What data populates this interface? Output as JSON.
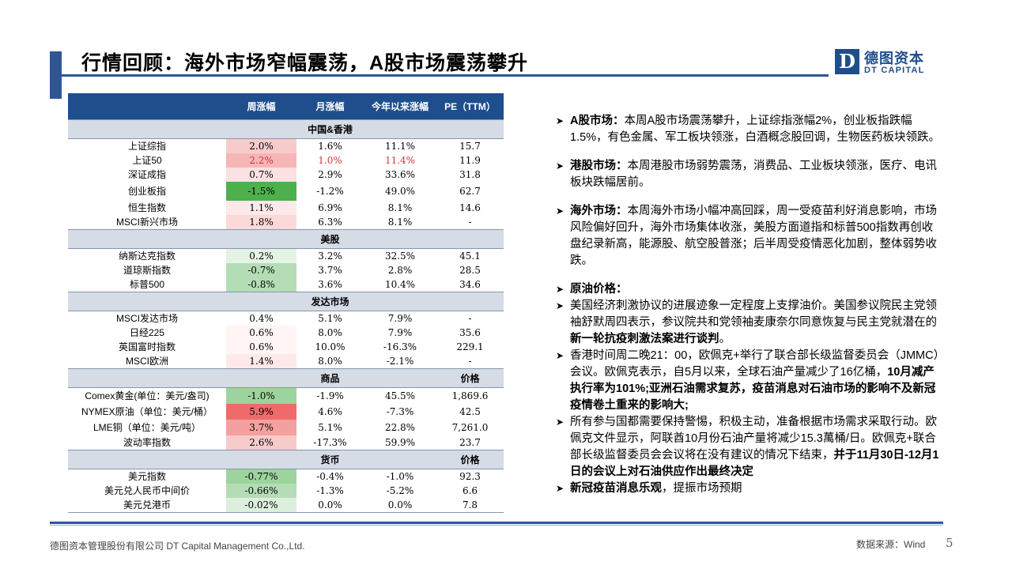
{
  "header": {
    "title": "行情回顾：海外市场窄幅震荡，A股市场震荡攀升",
    "logo_mark": "D",
    "logo_cn": "德图资本",
    "logo_en": "DT CAPITAL"
  },
  "table": {
    "columns": [
      "",
      "周涨幅",
      "月涨幅",
      "今年以来涨幅",
      "PE（TTM）"
    ],
    "sections": [
      {
        "title": "中国&香港",
        "extra": "",
        "rows": [
          {
            "name": "上证综指",
            "week": "2.0%",
            "month": "1.6%",
            "ytd": "11.1%",
            "pe": "15.7"
          },
          {
            "name": "上证50",
            "week": "2.2%",
            "month": "1.0%",
            "ytd": "11.4%",
            "pe": "11.9"
          },
          {
            "name": "深证成指",
            "week": "0.7%",
            "month": "2.9%",
            "ytd": "33.6%",
            "pe": "31.8"
          },
          {
            "name": "创业板指",
            "week": "-1.5%",
            "month": "-1.2%",
            "ytd": "49.0%",
            "pe": "62.7"
          },
          {
            "name": "恒生指数",
            "week": "1.1%",
            "month": "6.9%",
            "ytd": "8.1%",
            "pe": "14.6"
          },
          {
            "name": "MSCI新兴市场",
            "week": "1.8%",
            "month": "6.3%",
            "ytd": "8.1%",
            "pe": "-"
          }
        ]
      },
      {
        "title": "美股",
        "extra": "",
        "rows": [
          {
            "name": "纳斯达克指数",
            "week": "0.2%",
            "month": "3.2%",
            "ytd": "32.5%",
            "pe": "45.1"
          },
          {
            "name": "道琼斯指数",
            "week": "-0.7%",
            "month": "3.7%",
            "ytd": "2.8%",
            "pe": "28.5"
          },
          {
            "name": "标普500",
            "week": "-0.8%",
            "month": "3.6%",
            "ytd": "10.4%",
            "pe": "34.6"
          }
        ]
      },
      {
        "title": "发达市场",
        "extra": "",
        "rows": [
          {
            "name": "MSCI发达市场",
            "week": "0.4%",
            "month": "5.1%",
            "ytd": "7.9%",
            "pe": "-"
          },
          {
            "name": "日经225",
            "week": "0.6%",
            "month": "8.0%",
            "ytd": "7.9%",
            "pe": "35.6"
          },
          {
            "name": "英国富时指数",
            "week": "0.6%",
            "month": "10.0%",
            "ytd": "-16.3%",
            "pe": "229.1"
          },
          {
            "name": "MSCI欧洲",
            "week": "1.4%",
            "month": "8.0%",
            "ytd": "-2.1%",
            "pe": "-"
          }
        ]
      },
      {
        "title": "商品",
        "extra": "价格",
        "rows": [
          {
            "name": "Comex黄金(单位：美元/盎司)",
            "week": "-1.0%",
            "month": "-1.9%",
            "ytd": "45.5%",
            "pe": "1,869.6"
          },
          {
            "name": "NYMEX原油（单位：美元/桶）",
            "week": "5.9%",
            "month": "4.6%",
            "ytd": "-7.3%",
            "pe": "42.5"
          },
          {
            "name": "LME铜（单位：美元/吨）",
            "week": "3.7%",
            "month": "5.1%",
            "ytd": "22.8%",
            "pe": "7,261.0"
          },
          {
            "name": "波动率指数",
            "week": "2.6%",
            "month": "-17.3%",
            "ytd": "59.9%",
            "pe": "23.7"
          }
        ]
      },
      {
        "title": "货币",
        "extra": "价格",
        "rows": [
          {
            "name": "美元指数",
            "week": "-0.77%",
            "month": "-0.4%",
            "ytd": "-1.0%",
            "pe": "92.3"
          },
          {
            "name": "美元兑人民币中间价",
            "week": "-0.66%",
            "month": "-1.3%",
            "ytd": "-5.2%",
            "pe": "6.6"
          },
          {
            "name": "美元兑港币",
            "week": "-0.02%",
            "month": "0.0%",
            "ytd": "0.0%",
            "pe": "7.8"
          }
        ]
      }
    ]
  },
  "notes": {
    "a_share": {
      "lead": "A股市场：",
      "text": "本周A股市场震荡攀升，上证综指涨幅2%，创业板指跌幅1.5%，有色金属、军工板块领涨，白酒概念股回调，生物医药板块领跌。"
    },
    "hk": {
      "lead": "港股市场：",
      "text": "本周港股市场弱势震荡，消费品、工业板块领涨，医疗、电讯板块跌幅居前。"
    },
    "overseas": {
      "lead": "海外市场：",
      "text": "本周海外市场小幅冲高回踩，周一受疫苗利好消息影响，市场风险偏好回升，海外市场集体收涨，美股方面道指和标普500指数再创收盘纪录新高，能源股、航空股普涨；后半周受疫情恶化加剧，整体弱势收跌。"
    },
    "oil_title": "原油价格：",
    "oil_1a": "美国经济刺激协议的进展迹象一定程度上支撑油价。美国参议院民主党领袖舒默周四表示，参议院共和党领袖麦康奈尔同意恢复与民主党就潜在的",
    "oil_1b": "新一轮抗疫刺激法案进行谈判",
    "oil_1c": "。",
    "oil_2a": "香港时间周二晚21：00，欧佩克+举行了联合部长级监督委员会（JMMC）会议。欧佩克表示，自5月以来，全球石油产量减少了16亿桶，",
    "oil_2b": "10月减产执行率为101%;亚洲石油需求复苏，疫苗消息对石油市场的影响不及新冠疫情卷土重来的影响大;",
    "oil_3a": "所有参与国都需要保持警惕，积极主动，准备根据市场需求采取行动。欧佩克文件显示，阿联酋10月份石油产量将减少15.3萬桶/日。欧佩克+联合部长级监督委员会会议将在没有建议的情况下结束，",
    "oil_3b": "并于11月30日-12月1日的会议上对石油供应作出最终决定",
    "oil_4a": "新冠疫苗消息乐观",
    "oil_4b": "，提振市场预期"
  },
  "footer": {
    "company": "德图资本管理股份有限公司  DT Capital Management  Co.,Ltd.",
    "source": "数据来源：Wind",
    "page": "5"
  }
}
